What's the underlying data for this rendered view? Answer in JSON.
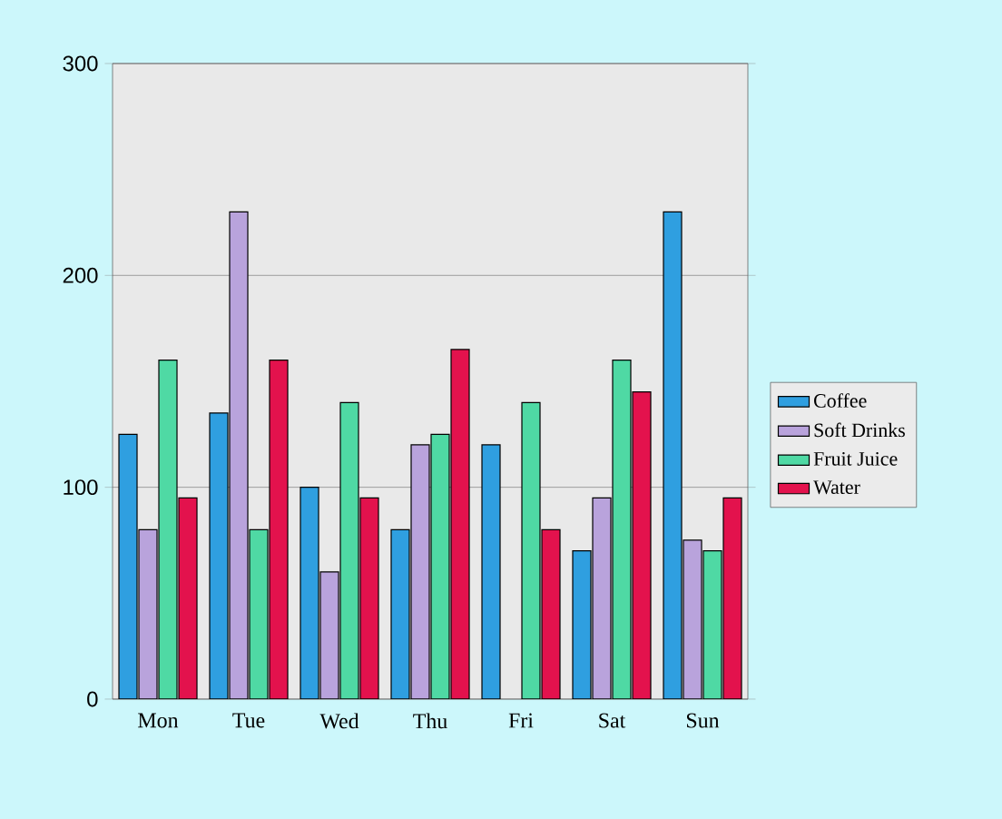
{
  "chart_data": {
    "type": "bar",
    "categories": [
      "Mon",
      "Tue",
      "Wed",
      "Thu",
      "Fri",
      "Sat",
      "Sun"
    ],
    "series": [
      {
        "name": "Coffee",
        "color": "#2f9fe0",
        "values": [
          125,
          135,
          100,
          80,
          120,
          70,
          230
        ]
      },
      {
        "name": "Soft Drinks",
        "color": "#b9a3dc",
        "values": [
          80,
          230,
          60,
          120,
          null,
          95,
          75
        ]
      },
      {
        "name": "Fruit Juice",
        "color": "#4fd9a4",
        "values": [
          160,
          80,
          140,
          125,
          140,
          160,
          70
        ]
      },
      {
        "name": "Water",
        "color": "#e3124d",
        "values": [
          95,
          160,
          95,
          165,
          80,
          145,
          95
        ]
      }
    ],
    "ylim": [
      0,
      300
    ],
    "yticks": [
      0,
      100,
      200,
      300
    ],
    "grid": "y",
    "legend": "right"
  }
}
